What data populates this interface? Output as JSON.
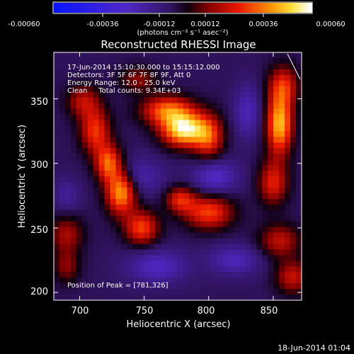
{
  "chart_data": {
    "type": "heatmap",
    "title": "Reconstructed RHESSI Image",
    "xlabel": "Heliocentric X (arcsec)",
    "ylabel": "Heliocentric Y (arcsec)",
    "xlim": [
      680,
      872
    ],
    "ylim": [
      194,
      386
    ],
    "x_ticks": [
      700,
      750,
      800,
      850
    ],
    "y_ticks": [
      200,
      250,
      300,
      350
    ],
    "colorbar": {
      "range": [
        -0.0006,
        0.0006
      ],
      "tick_values": [
        -0.0006,
        -0.00036,
        -0.00012,
        0.00012,
        0.00036,
        0.0006
      ],
      "tick_labels": [
        "-0.00060",
        "-0.00036",
        "-0.00012",
        "0.00012",
        "0.00036",
        "0.00060"
      ],
      "unit_label": "(photons cm⁻² s⁻¹ asec⁻²)"
    },
    "annotations": {
      "time_range": "17-Jun-2014 15:10:30.000 to 15:15:12.000",
      "detectors": "Detectors: 3F 5F 6F 7F 8F 9F, Att 0",
      "energy_range": "Energy Range: 12.0 - 25.0 keV",
      "clean_counts": "Clean     Total counts: 9.34E+03",
      "peak": "Position of Peak = [781,326]"
    },
    "footer_timestamp": "18-Jun-2014 01:04",
    "blobs": [
      {
        "x": 781,
        "y": 326,
        "peak": 0.0006,
        "sx": 12,
        "sy": 9
      },
      {
        "x": 768,
        "y": 341,
        "peak": 0.0004,
        "sx": 14,
        "sy": 8
      },
      {
        "x": 800,
        "y": 320,
        "peak": 0.00032,
        "sx": 8,
        "sy": 12
      },
      {
        "x": 732,
        "y": 278,
        "peak": 0.0005,
        "sx": 8,
        "sy": 12
      },
      {
        "x": 722,
        "y": 300,
        "peak": 0.0004,
        "sx": 7,
        "sy": 10
      },
      {
        "x": 748,
        "y": 250,
        "peak": 0.00036,
        "sx": 9,
        "sy": 9
      },
      {
        "x": 712,
        "y": 325,
        "peak": 0.00034,
        "sx": 8,
        "sy": 12
      },
      {
        "x": 703,
        "y": 348,
        "peak": 0.00024,
        "sx": 9,
        "sy": 9
      },
      {
        "x": 855,
        "y": 330,
        "peak": 0.00052,
        "sx": 7,
        "sy": 16
      },
      {
        "x": 858,
        "y": 360,
        "peak": 0.0003,
        "sx": 8,
        "sy": 11
      },
      {
        "x": 850,
        "y": 285,
        "peak": 0.0003,
        "sx": 8,
        "sy": 12
      },
      {
        "x": 800,
        "y": 262,
        "peak": 0.00036,
        "sx": 13,
        "sy": 9
      },
      {
        "x": 778,
        "y": 272,
        "peak": 0.0003,
        "sx": 8,
        "sy": 7
      },
      {
        "x": 855,
        "y": 240,
        "peak": 0.00025,
        "sx": 11,
        "sy": 9
      },
      {
        "x": 865,
        "y": 212,
        "peak": 0.00026,
        "sx": 9,
        "sy": 9
      },
      {
        "x": 690,
        "y": 245,
        "peak": 0.00022,
        "sx": 9,
        "sy": 10
      },
      {
        "x": 690,
        "y": 220,
        "peak": 0.00018,
        "sx": 7,
        "sy": 9
      },
      {
        "x": 745,
        "y": 365,
        "peak": 0.00018,
        "sx": 10,
        "sy": 7
      },
      {
        "x": 745,
        "y": 290,
        "peak": -0.00016,
        "sx": 14,
        "sy": 10
      },
      {
        "x": 805,
        "y": 290,
        "peak": -0.00022,
        "sx": 12,
        "sy": 9
      },
      {
        "x": 760,
        "y": 220,
        "peak": -0.0002,
        "sx": 16,
        "sy": 9
      },
      {
        "x": 820,
        "y": 225,
        "peak": -0.00018,
        "sx": 14,
        "sy": 8
      },
      {
        "x": 830,
        "y": 340,
        "peak": -0.00018,
        "sx": 7,
        "sy": 14
      },
      {
        "x": 690,
        "y": 275,
        "peak": -0.00012,
        "sx": 7,
        "sy": 9
      }
    ]
  }
}
